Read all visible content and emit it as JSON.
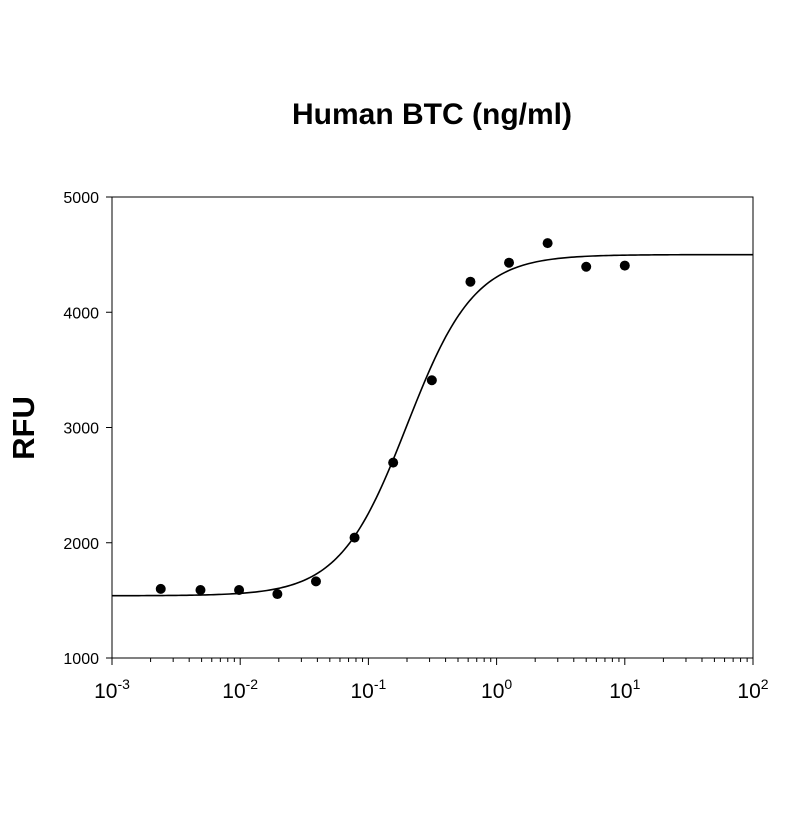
{
  "chart_data": {
    "type": "scatter",
    "title": "Human BTC (ng/ml)",
    "xlabel": "",
    "ylabel": "RFU",
    "x_scale": "log",
    "xlim": [
      0.001,
      100
    ],
    "ylim": [
      1000,
      5000
    ],
    "x_ticks": [
      {
        "base": "10",
        "exp": "-3",
        "value": 0.001
      },
      {
        "base": "10",
        "exp": "-2",
        "value": 0.01
      },
      {
        "base": "10",
        "exp": "-1",
        "value": 0.1
      },
      {
        "base": "10",
        "exp": "0",
        "value": 1
      },
      {
        "base": "10",
        "exp": "1",
        "value": 10
      },
      {
        "base": "10",
        "exp": "2",
        "value": 100
      }
    ],
    "y_ticks": [
      "1000",
      "2000",
      "3000",
      "4000",
      "5000"
    ],
    "grid": false,
    "series": [
      {
        "x": [
          0.0024,
          0.0049,
          0.0098,
          0.0195,
          0.039,
          0.078,
          0.156,
          0.3125,
          0.625,
          1.25,
          2.5,
          5,
          10
        ],
        "y": [
          1600,
          1590,
          1590,
          1555,
          1665,
          2045,
          2695,
          3410,
          4265,
          4430,
          4600,
          4395,
          4405
        ],
        "color": "#000000"
      }
    ],
    "fit_curve": {
      "model": "4PL",
      "bottom": 1540,
      "top": 4500,
      "ec50": 0.2,
      "hill": 1.65,
      "color": "#000000"
    }
  }
}
